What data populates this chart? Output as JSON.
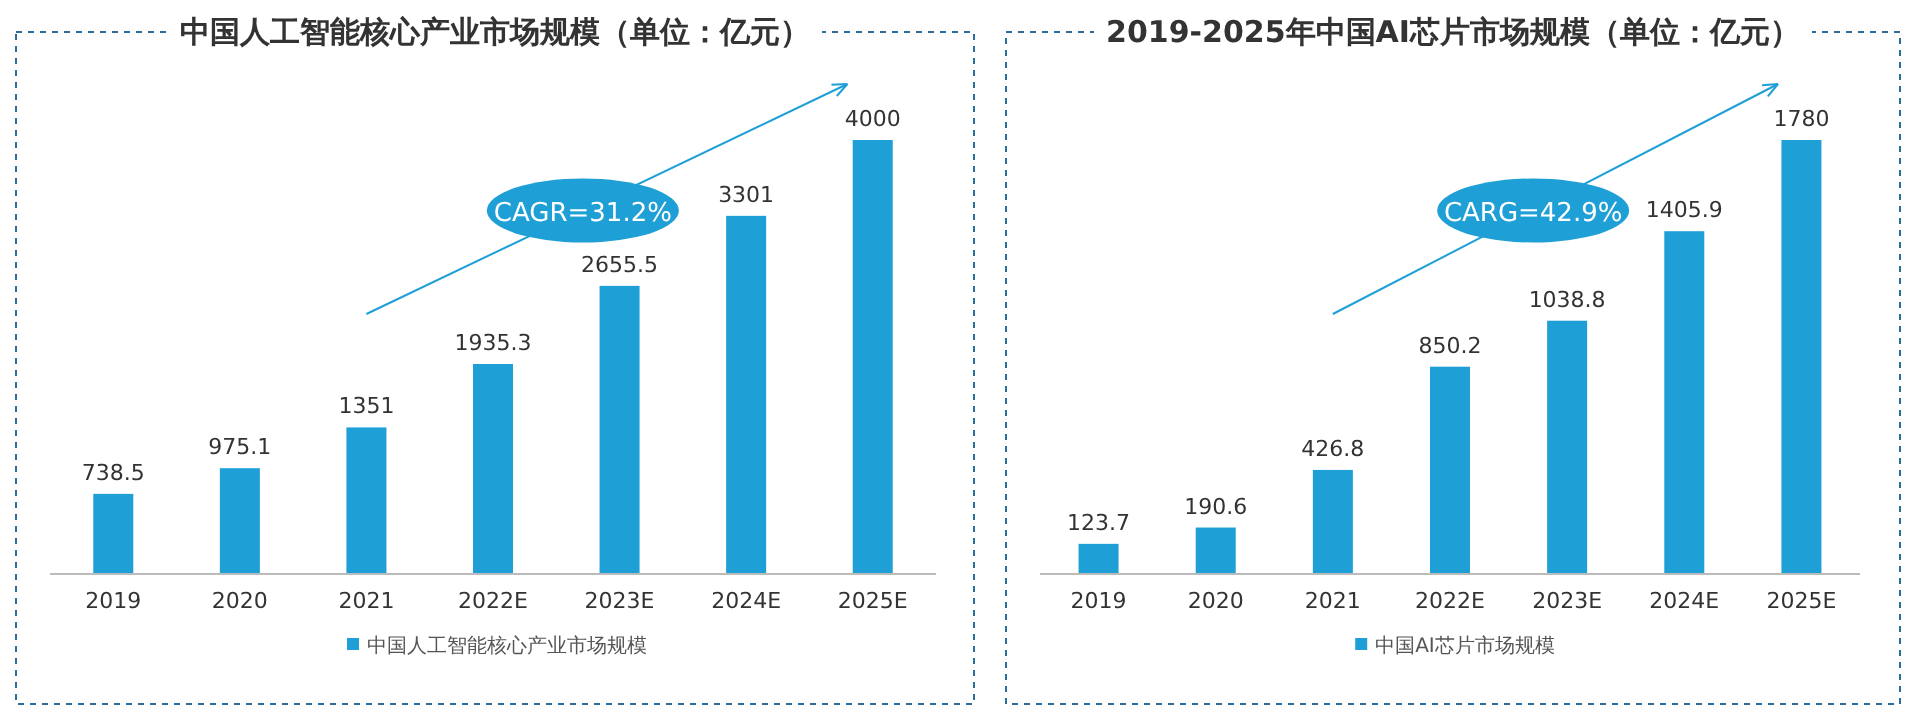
{
  "chart_data": [
    {
      "type": "bar",
      "title": "中国人工智能核心产业市场规模（单位：亿元）",
      "categories": [
        "2019",
        "2020",
        "2021",
        "2022E",
        "2023E",
        "2024E",
        "2025E"
      ],
      "series": [
        {
          "name": "中国人工智能核心产业市场规模",
          "color": "#1e9fd6",
          "values": [
            738.5,
            975.1,
            1351,
            1935.3,
            2655.5,
            3301,
            4000
          ]
        }
      ],
      "data_labels": true,
      "legend": "bottom",
      "annotations": [
        "CAGR=31.2%"
      ]
    },
    {
      "type": "bar",
      "title": "2019-2025年中国AI芯片市场规模（单位：亿元）",
      "categories": [
        "2019",
        "2020",
        "2021",
        "2022E",
        "2023E",
        "2024E",
        "2025E"
      ],
      "series": [
        {
          "name": "中国AI芯片市场规模",
          "color": "#1e9fd6",
          "values": [
            123.7,
            190.6,
            426.8,
            850.2,
            1038.8,
            1405.9,
            1780
          ]
        }
      ],
      "data_labels": true,
      "legend": "bottom",
      "annotations": [
        "CARG=42.9%"
      ]
    }
  ]
}
